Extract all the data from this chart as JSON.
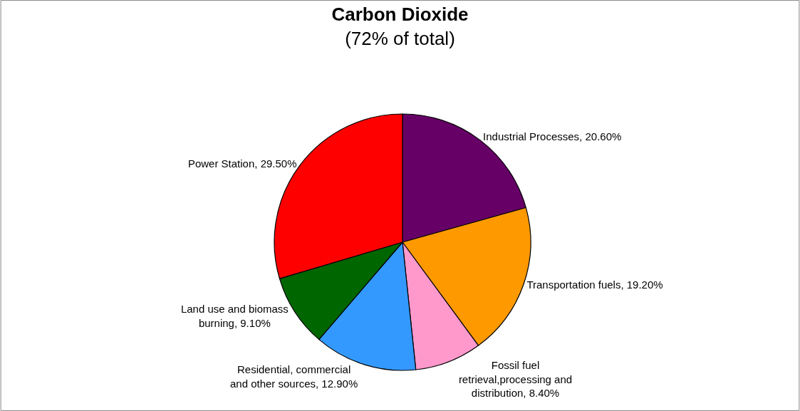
{
  "chart_data": {
    "type": "pie",
    "title": "Carbon Dioxide",
    "subtitle": "(72% of total)",
    "categories": [
      "Industrial Processes",
      "Transportation fuels",
      "Fossil fuel retrieval,processing and distribution",
      "Residential, commercial and other sources",
      "Land use and biomass burning",
      "Power Station"
    ],
    "values": [
      20.6,
      19.2,
      8.4,
      12.9,
      9.1,
      29.5
    ],
    "value_labels": [
      "20.60%",
      "19.20%",
      "8.40%",
      "12.90%",
      "9.10%",
      "29.50%"
    ],
    "colors": [
      "#660066",
      "#ff9900",
      "#ff99cc",
      "#3399ff",
      "#006600",
      "#ff0000"
    ],
    "legend": false
  }
}
